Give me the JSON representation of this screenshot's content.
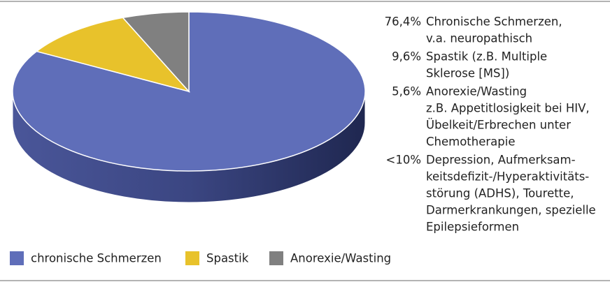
{
  "chart_data": {
    "type": "pie",
    "categories": [
      "chronische Schmerzen",
      "Spastik",
      "Anorexie/Wasting"
    ],
    "values": [
      76.4,
      9.6,
      5.6
    ],
    "colors": [
      "#5f6eb9",
      "#e8c22b",
      "#808080"
    ],
    "legend": "bottom",
    "annotations": [
      {
        "label": "76,4%",
        "lines": [
          "Chronische Schmerzen,",
          "v.a. neuropathisch"
        ]
      },
      {
        "label": "9,6%",
        "lines": [
          "Spastik (z.B. Multiple",
          "Sklerose [MS])"
        ]
      },
      {
        "label": "5,6%",
        "lines": [
          "Anorexie/Wasting",
          "z.B. Appetitlosigkeit bei HIV,",
          "Übelkeit/Erbrechen unter",
          "Chemotherapie"
        ]
      },
      {
        "label": "<10%",
        "lines": [
          "Depression, Aufmerksam-",
          "keitsdefizit-/Hyperaktivitäts-",
          "störung (ADHS), Tourette,",
          "Darmerkrankungen, spezielle",
          "Epilepsieformen"
        ]
      }
    ]
  }
}
